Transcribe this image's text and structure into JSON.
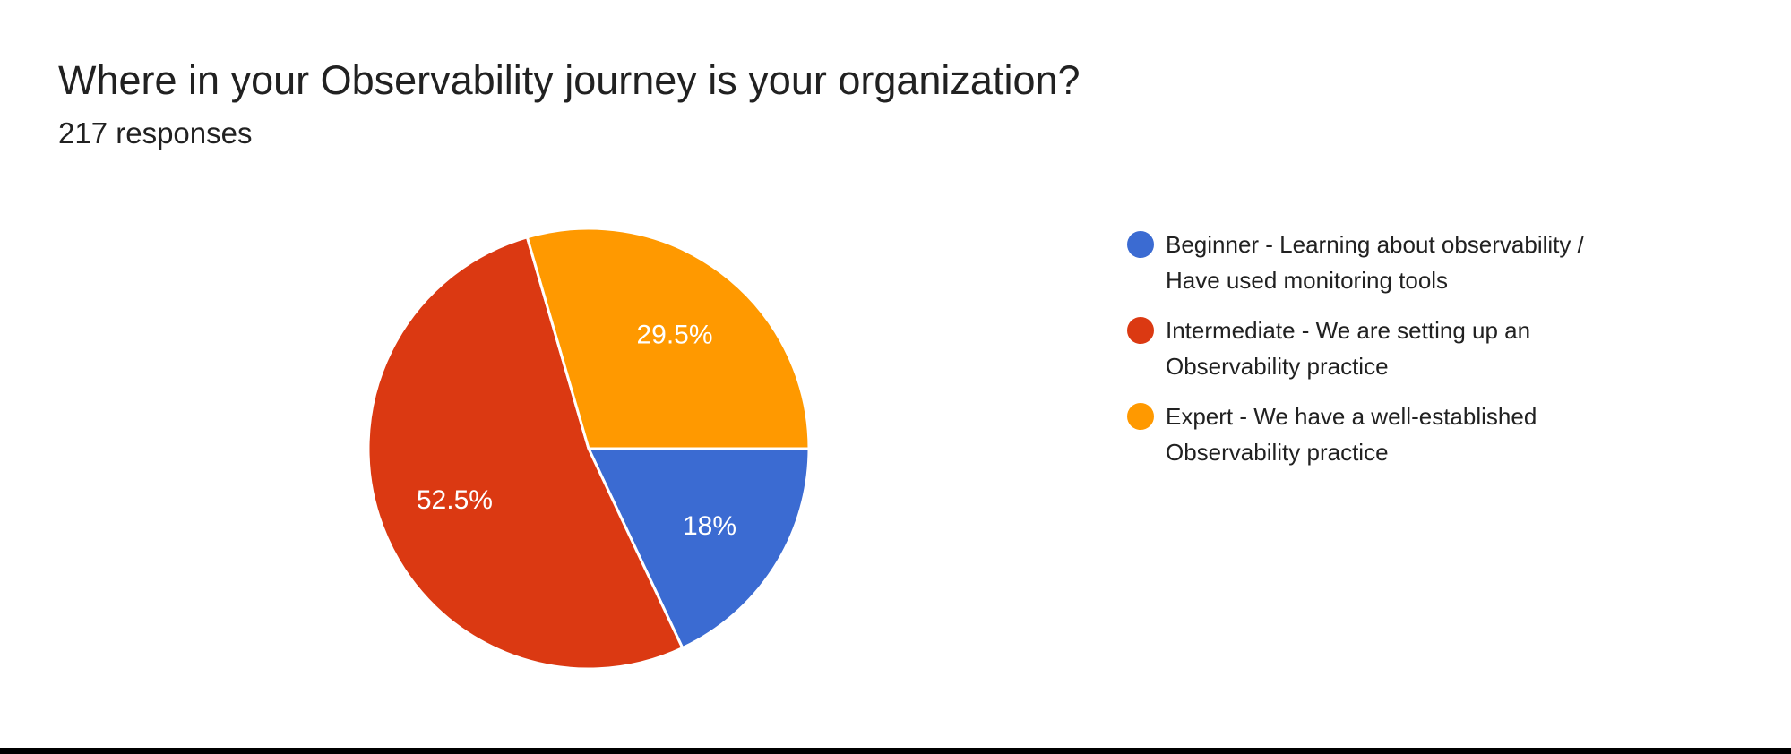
{
  "page": {
    "background": "#ffffff",
    "bottom_bar_color": "#000000"
  },
  "chart_data": {
    "type": "pie",
    "title": "Where in your Observability journey is your organization?",
    "subtitle": "217 responses",
    "total_responses": 217,
    "legend_position": "right",
    "start_angle_deg": 90,
    "direction": "clockwise",
    "slice_label_color": "#ffffff",
    "slice_separator_color": "#ffffff",
    "slices": [
      {
        "label": "Beginner - Learning about observability / Have used monitoring tools",
        "legend_lines": [
          "Beginner - Learning about observability /",
          "Have used monitoring tools"
        ],
        "pct": 18,
        "display": "18%",
        "color": "#3B6BD2"
      },
      {
        "label": "Intermediate - We are setting up an Observability practice",
        "legend_lines": [
          "Intermediate - We are setting up an",
          "Observability practice"
        ],
        "pct": 52.5,
        "display": "52.5%",
        "color": "#DB3912"
      },
      {
        "label": "Expert - We have a well-established Observability practice",
        "legend_lines": [
          "Expert - We have a well-established",
          "Observability practice"
        ],
        "pct": 29.5,
        "display": "29.5%",
        "color": "#FF9900"
      }
    ]
  }
}
